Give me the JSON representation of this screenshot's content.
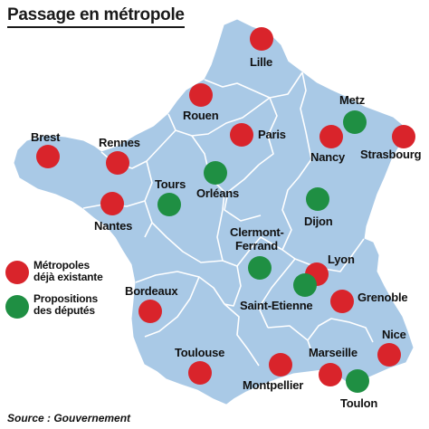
{
  "title": "Passage en métropole",
  "source": "Source : Gouvernement",
  "colors": {
    "land": "#a9c9e6",
    "border": "#ffffff",
    "existing": "#d9242b",
    "proposed": "#1f8f43"
  },
  "legend": {
    "existing": {
      "line1": "Métropoles",
      "line2": "déjà existante"
    },
    "proposed": {
      "line1": "Propositions",
      "line2": "des députés"
    }
  },
  "cities": {
    "lille": "Lille",
    "rouen": "Rouen",
    "paris": "Paris",
    "metz": "Metz",
    "nancy": "Nancy",
    "strasbourg": "Strasbourg",
    "brest": "Brest",
    "rennes": "Rennes",
    "nantes": "Nantes",
    "tours": "Tours",
    "orleans": "Orléans",
    "dijon": "Dijon",
    "clermont_line1": "Clermont-",
    "clermont_line2": "Ferrand",
    "lyon": "Lyon",
    "saint_etienne": "Saint-Etienne",
    "grenoble": "Grenoble",
    "bordeaux": "Bordeaux",
    "toulouse": "Toulouse",
    "montpellier": "Montpellier",
    "marseille": "Marseille",
    "nice": "Nice",
    "toulon": "Toulon"
  }
}
